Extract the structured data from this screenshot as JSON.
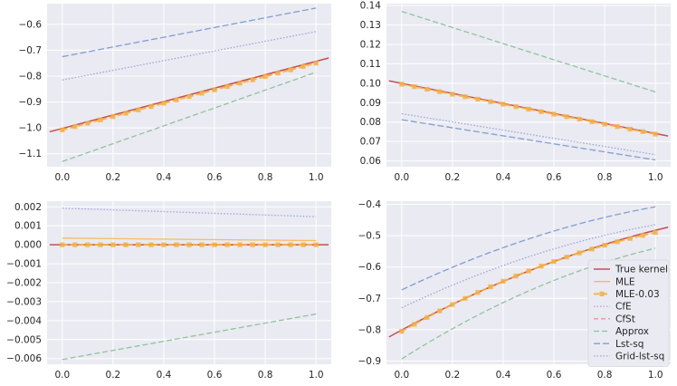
{
  "colors": {
    "background": "#ffffff",
    "panel": "#eaeaf2",
    "grid": "#ffffff",
    "true_kernel": "#c44e52",
    "mle": "#f5b041",
    "mle_003": "#f5b041",
    "cfe": "#c797c7",
    "cfst": "#d98a8a",
    "approx": "#8fc49a",
    "lst_sq": "#7f9fd1",
    "grid_lst_sq": "#9aa6d8"
  },
  "chart_data": [
    {
      "type": "line",
      "panel": "top-left",
      "xlim": [
        -0.06,
        1.06
      ],
      "ylim": [
        -1.15,
        -0.52
      ],
      "xticks": [
        0.0,
        0.2,
        0.4,
        0.6,
        0.8,
        1.0
      ],
      "xtick_labels": [
        "0.0",
        "0.2",
        "0.4",
        "0.6",
        "0.8",
        "1.0"
      ],
      "yticks": [
        -1.1,
        -1.0,
        -0.9,
        -0.8,
        -0.7,
        -0.6
      ],
      "ytick_labels": [
        "−1.1",
        "−1.0",
        "−0.9",
        "−0.8",
        "−0.7",
        "−0.6"
      ],
      "series": [
        {
          "name": "True kernel",
          "x": [
            -0.05,
            1.05
          ],
          "y": [
            -1.015,
            -0.73
          ]
        },
        {
          "name": "MLE-0.03",
          "x0": 0.0,
          "x1": 1.0,
          "n": 21,
          "y0": -1.008,
          "y1": -0.75
        },
        {
          "name": "Approx",
          "x": [
            0.0,
            1.0
          ],
          "y": [
            -1.13,
            -0.785
          ]
        },
        {
          "name": "Lst-sq",
          "x": [
            0.0,
            1.0
          ],
          "y": [
            -0.725,
            -0.537
          ]
        },
        {
          "name": "Grid-lst-sq",
          "x": [
            0.0,
            1.0
          ],
          "y": [
            -0.815,
            -0.628
          ]
        }
      ]
    },
    {
      "type": "line",
      "panel": "top-right",
      "xlim": [
        -0.06,
        1.06
      ],
      "ylim": [
        0.057,
        0.141
      ],
      "xticks": [
        0.0,
        0.2,
        0.4,
        0.6,
        0.8,
        1.0
      ],
      "xtick_labels": [
        "0.0",
        "0.2",
        "0.4",
        "0.6",
        "0.8",
        "1.0"
      ],
      "yticks": [
        0.06,
        0.07,
        0.08,
        0.09,
        0.1,
        0.11,
        0.12,
        0.13,
        0.14
      ],
      "ytick_labels": [
        "0.06",
        "0.07",
        "0.08",
        "0.09",
        "0.10",
        "0.11",
        "0.12",
        "0.13",
        "0.14"
      ],
      "series": [
        {
          "name": "True kernel",
          "x": [
            -0.05,
            1.05
          ],
          "y": [
            0.1012,
            0.0728
          ]
        },
        {
          "name": "MLE-0.03",
          "x0": 0.0,
          "x1": 1.0,
          "n": 21,
          "y0": 0.0995,
          "y1": 0.0738
        },
        {
          "name": "Approx",
          "x": [
            0.0,
            1.0
          ],
          "y": [
            0.137,
            0.0955
          ]
        },
        {
          "name": "Lst-sq",
          "x": [
            0.0,
            1.0
          ],
          "y": [
            0.0812,
            0.0605
          ]
        },
        {
          "name": "Grid-lst-sq",
          "x": [
            0.0,
            1.0
          ],
          "y": [
            0.0843,
            0.0632
          ]
        }
      ]
    },
    {
      "type": "line",
      "panel": "bottom-left",
      "xlim": [
        -0.06,
        1.06
      ],
      "ylim": [
        -0.0063,
        0.0023
      ],
      "xticks": [
        0.0,
        0.2,
        0.4,
        0.6,
        0.8,
        1.0
      ],
      "xtick_labels": [
        "0.0",
        "0.2",
        "0.4",
        "0.6",
        "0.8",
        "1.0"
      ],
      "yticks": [
        -0.006,
        -0.005,
        -0.004,
        -0.003,
        -0.002,
        -0.001,
        0.0,
        0.001,
        0.002
      ],
      "ytick_labels": [
        "−0.006",
        "−0.005",
        "−0.004",
        "−0.003",
        "−0.002",
        "−0.001",
        "0.000",
        "0.001",
        "0.002"
      ],
      "series": [
        {
          "name": "True kernel",
          "x": [
            -0.05,
            1.05
          ],
          "y": [
            0.0,
            0.0
          ]
        },
        {
          "name": "MLE",
          "x": [
            0.0,
            1.0
          ],
          "y": [
            0.00035,
            0.00022
          ]
        },
        {
          "name": "MLE-0.03",
          "x0": 0.0,
          "x1": 1.0,
          "n": 21,
          "y0": 0.0,
          "y1": 0.0
        },
        {
          "name": "Approx",
          "x": [
            0.0,
            1.0
          ],
          "y": [
            -0.00605,
            -0.00365
          ]
        },
        {
          "name": "Grid-lst-sq",
          "x": [
            0.0,
            1.0
          ],
          "y": [
            0.00193,
            0.00148
          ]
        }
      ]
    },
    {
      "type": "line",
      "panel": "bottom-right",
      "xlim": [
        -0.06,
        1.06
      ],
      "ylim": [
        -0.91,
        -0.39
      ],
      "xticks": [
        0.0,
        0.2,
        0.4,
        0.6,
        0.8,
        1.0
      ],
      "xtick_labels": [
        "0.0",
        "0.2",
        "0.4",
        "0.6",
        "0.8",
        "1.0"
      ],
      "yticks": [
        -0.9,
        -0.8,
        -0.7,
        -0.6,
        -0.5,
        -0.4
      ],
      "ytick_labels": [
        "−0.9",
        "−0.8",
        "−0.7",
        "−0.6",
        "−0.5",
        "−0.4"
      ],
      "series": [
        {
          "name": "True kernel",
          "x": [
            -0.05,
            1.05
          ],
          "y": [
            -0.823,
            -0.473
          ],
          "curve": 0.035
        },
        {
          "name": "MLE-0.03",
          "x0": 0.0,
          "x1": 1.0,
          "n": 21,
          "y0": -0.805,
          "y1": -0.49,
          "curve": 0.035
        },
        {
          "name": "Approx",
          "x": [
            0.0,
            1.0
          ],
          "y": [
            -0.893,
            -0.54
          ],
          "curve": 0.04
        },
        {
          "name": "Lst-sq",
          "x": [
            0.0,
            1.0
          ],
          "y": [
            -0.673,
            -0.408
          ],
          "curve": 0.03
        },
        {
          "name": "Grid-lst-sq",
          "x": [
            0.0,
            1.0
          ],
          "y": [
            -0.73,
            -0.465
          ],
          "curve": 0.03
        }
      ]
    }
  ],
  "legend": {
    "location": "lower-right of bottom-right panel",
    "entries": [
      "True kernel",
      "MLE",
      "MLE-0.03",
      "CfE",
      "CfSt",
      "Approx",
      "Lst-sq",
      "Grid-lst-sq"
    ]
  }
}
